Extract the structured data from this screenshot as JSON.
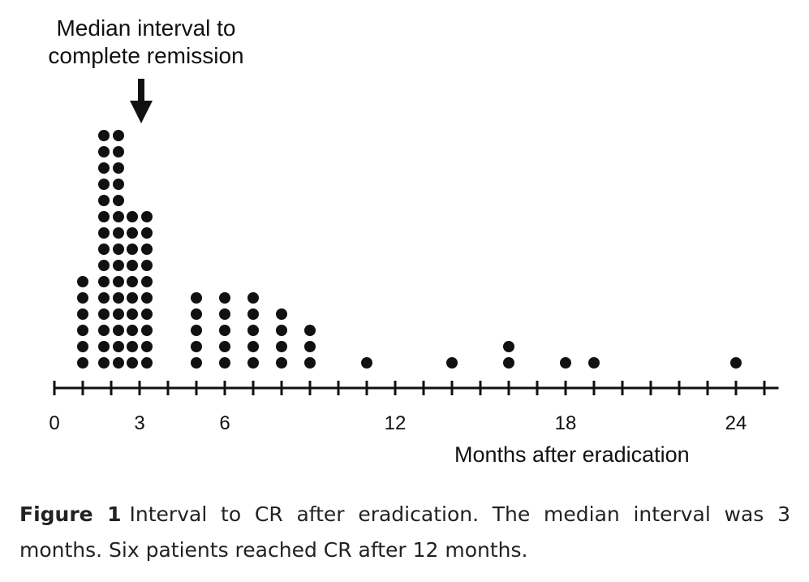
{
  "chart_data": {
    "type": "scatter",
    "style": "dot-plot",
    "xlabel": "Months after eradication",
    "xlim": [
      0,
      25.5
    ],
    "xticks": [
      0,
      3,
      6,
      12,
      18,
      24
    ],
    "x_minor_tick_step": 1,
    "annotation": {
      "lines": [
        "Median interval to",
        "complete remission"
      ],
      "x": 3
    },
    "points": [
      {
        "x": 1,
        "count": 6
      },
      {
        "x": 2,
        "count": 30
      },
      {
        "x": 3,
        "count": 20
      },
      {
        "x": 5,
        "count": 5
      },
      {
        "x": 6,
        "count": 5
      },
      {
        "x": 7,
        "count": 5
      },
      {
        "x": 8,
        "count": 4
      },
      {
        "x": 9,
        "count": 3
      },
      {
        "x": 11,
        "count": 1
      },
      {
        "x": 14,
        "count": 1
      },
      {
        "x": 16,
        "count": 2
      },
      {
        "x": 18,
        "count": 1
      },
      {
        "x": 19,
        "count": 1
      },
      {
        "x": 24,
        "count": 1
      }
    ],
    "colors": {
      "dot": "#111111",
      "axis": "#111111"
    }
  },
  "caption": {
    "label": "Figure 1",
    "text": "Interval to CR after eradication. The median interval was 3 months. Six patients reached CR after 12 months."
  }
}
